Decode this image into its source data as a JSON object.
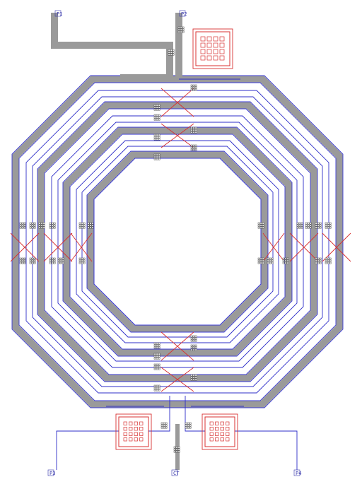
{
  "pins": [
    {
      "id": "pin-top-left",
      "label": "P1"
    },
    {
      "id": "pin-top-right",
      "label": "P2"
    },
    {
      "id": "pin-bottom-left",
      "label": "P3"
    },
    {
      "id": "pin-bottom-mid",
      "label": "CT"
    },
    {
      "id": "pin-bottom-right",
      "label": "P4"
    }
  ],
  "colors": {
    "metal_top": "#9a9a9a",
    "metal_edge": "#3b3bd6",
    "underpass": "#d83030",
    "background": "#ffffff"
  },
  "structure": {
    "shape": "octagon",
    "turns": 4,
    "pads": 3
  }
}
